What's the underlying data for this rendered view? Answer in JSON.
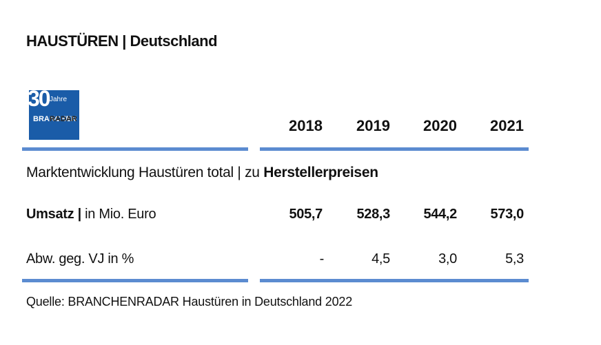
{
  "header": {
    "title": "HAUSTÜREN | Deutschland"
  },
  "logo": {
    "number": "30",
    "label": "Jahre",
    "brand_1": "BRANCHEN",
    "brand_2": "RADAR"
  },
  "table": {
    "years": [
      "2018",
      "2019",
      "2020",
      "2021"
    ],
    "section": {
      "text": "Marktentwicklung Haustüren total | zu",
      "bold": "Herstellerpreisen"
    },
    "rows": [
      {
        "label_bold": "Umsatz |",
        "label": "in Mio. Euro",
        "values": [
          "505,7",
          "528,3",
          "544,2",
          "573,0"
        ]
      },
      {
        "label": "Abw. geg. VJ in %",
        "values": [
          "-",
          "4,5",
          "3,0",
          "5,3"
        ]
      }
    ]
  },
  "footer": {
    "source": "Quelle: BRANCHENRADAR Haustüren in Deutschland 2022"
  }
}
